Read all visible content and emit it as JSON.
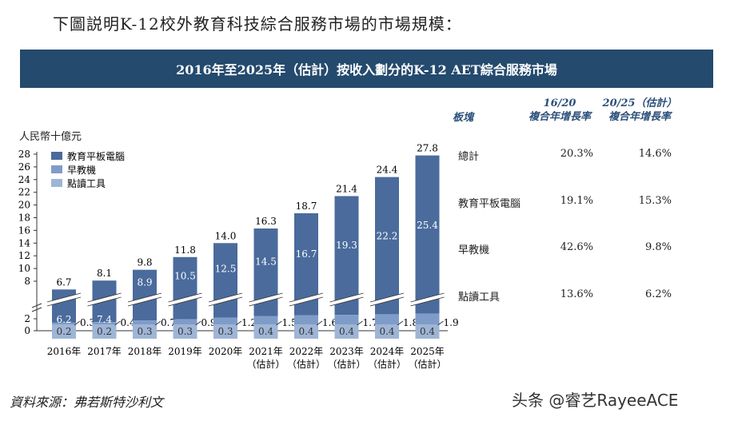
{
  "intro": "下圖説明K-12校外教育科技綜合服務市場的市場規模：",
  "chart_data": {
    "type": "bar",
    "stacked": true,
    "title": "2016年至2025年（估計）按收入劃分的K-12 AET綜合服務市場",
    "ylabel": "人民幣十億元",
    "yticks": [
      0,
      2,
      8,
      10,
      12,
      14,
      16,
      18,
      20,
      22,
      24,
      26,
      28
    ],
    "axis_break": [
      2,
      8
    ],
    "legend_position": "top-left",
    "categories": [
      [
        "2016年"
      ],
      [
        "2017年"
      ],
      [
        "2018年"
      ],
      [
        "2019年"
      ],
      [
        "2020年"
      ],
      [
        "2021年",
        "（估計）"
      ],
      [
        "2022年",
        "（估計）"
      ],
      [
        "2023年",
        "（估計）"
      ],
      [
        "2024年",
        "（估計）"
      ],
      [
        "2025年",
        "（估計）"
      ]
    ],
    "series": [
      {
        "name": "教育平板電腦",
        "color": "#4a6b9c",
        "values": [
          6.2,
          7.4,
          8.9,
          10.5,
          12.5,
          14.5,
          16.7,
          19.3,
          22.2,
          25.4
        ]
      },
      {
        "name": "早教機",
        "color": "#7f9cc8",
        "values": [
          0.3,
          0.4,
          0.7,
          0.9,
          1.2,
          1.5,
          1.6,
          1.7,
          1.8,
          1.9
        ]
      },
      {
        "name": "點讀工具",
        "color": "#9fb5d6",
        "values": [
          0.2,
          0.2,
          0.3,
          0.3,
          0.3,
          0.4,
          0.4,
          0.4,
          0.4,
          0.4
        ]
      }
    ],
    "totals": [
      6.7,
      8.1,
      9.8,
      11.8,
      14.0,
      16.3,
      18.7,
      21.4,
      24.4,
      27.8
    ]
  },
  "table": {
    "headers": [
      "板塊",
      "16/20",
      "複合年增長率",
      "20/25（估計）",
      "複合年增長率"
    ],
    "rows": [
      {
        "label": "總計",
        "a": "20.3%",
        "b": "14.6%"
      },
      {
        "label": "教育平板電腦",
        "a": "19.1%",
        "b": "15.3%"
      },
      {
        "label": "早教機",
        "a": "42.6%",
        "b": "9.8%"
      },
      {
        "label": "點讀工具",
        "a": "13.6%",
        "b": "6.2%"
      }
    ]
  },
  "source": "資料來源：弗若斯特沙利文",
  "watermark": "头条 @睿艺RayeeACE"
}
